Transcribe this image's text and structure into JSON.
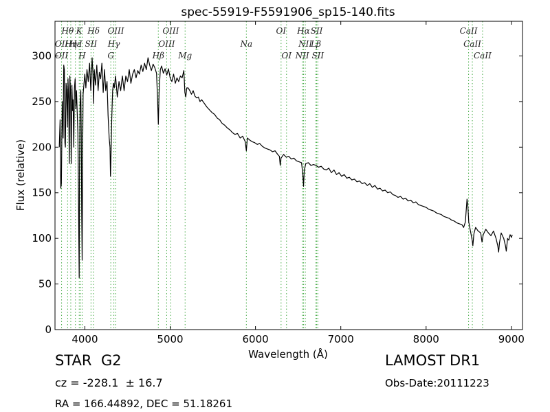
{
  "chart_data": {
    "type": "line",
    "title": "spec-55919-F5591906_sp15-140.fits",
    "xlabel": "Wavelength (Å)",
    "ylabel": "Flux (relative)",
    "xlim": [
      3650,
      9130
    ],
    "ylim": [
      0,
      338
    ],
    "xticks": [
      4000,
      5000,
      6000,
      7000,
      8000,
      9000
    ],
    "yticks": [
      0,
      50,
      100,
      150,
      200,
      250,
      300
    ],
    "grid": false,
    "line_color": "#000000",
    "series": [
      {
        "values": [
          [
            3700,
            200
          ],
          [
            3710,
            230
          ],
          [
            3718,
            155
          ],
          [
            3725,
            160
          ],
          [
            3735,
            250
          ],
          [
            3745,
            210
          ],
          [
            3752,
            290
          ],
          [
            3760,
            285
          ],
          [
            3766,
            205
          ],
          [
            3772,
            200
          ],
          [
            3780,
            270
          ],
          [
            3787,
            262
          ],
          [
            3795,
            222
          ],
          [
            3802,
            275
          ],
          [
            3810,
            252
          ],
          [
            3818,
            182
          ],
          [
            3824,
            278
          ],
          [
            3832,
            262
          ],
          [
            3840,
            182
          ],
          [
            3848,
            268
          ],
          [
            3856,
            240
          ],
          [
            3862,
            252
          ],
          [
            3870,
            200
          ],
          [
            3878,
            265
          ],
          [
            3886,
            275
          ],
          [
            3894,
            242
          ],
          [
            3902,
            262
          ],
          [
            3910,
            238
          ],
          [
            3918,
            215
          ],
          [
            3925,
            150
          ],
          [
            3930,
            95
          ],
          [
            3934,
            57
          ],
          [
            3938,
            180
          ],
          [
            3944,
            248
          ],
          [
            3952,
            262
          ],
          [
            3958,
            215
          ],
          [
            3963,
            130
          ],
          [
            3968,
            76
          ],
          [
            3973,
            185
          ],
          [
            3980,
            258
          ],
          [
            3990,
            270
          ],
          [
            4000,
            280
          ],
          [
            4012,
            265
          ],
          [
            4025,
            285
          ],
          [
            4040,
            272
          ],
          [
            4055,
            292
          ],
          [
            4070,
            262
          ],
          [
            4085,
            298
          ],
          [
            4095,
            280
          ],
          [
            4102,
            248
          ],
          [
            4110,
            285
          ],
          [
            4125,
            268
          ],
          [
            4140,
            290
          ],
          [
            4155,
            262
          ],
          [
            4170,
            282
          ],
          [
            4185,
            275
          ],
          [
            4200,
            292
          ],
          [
            4215,
            260
          ],
          [
            4230,
            285
          ],
          [
            4245,
            262
          ],
          [
            4260,
            272
          ],
          [
            4272,
            235
          ],
          [
            4285,
            210
          ],
          [
            4295,
            200
          ],
          [
            4300,
            168
          ],
          [
            4305,
            185
          ],
          [
            4315,
            230
          ],
          [
            4325,
            262
          ],
          [
            4335,
            270
          ],
          [
            4345,
            265
          ],
          [
            4360,
            278
          ],
          [
            4380,
            255
          ],
          [
            4400,
            272
          ],
          [
            4420,
            262
          ],
          [
            4440,
            278
          ],
          [
            4460,
            262
          ],
          [
            4480,
            278
          ],
          [
            4500,
            272
          ],
          [
            4520,
            285
          ],
          [
            4540,
            270
          ],
          [
            4560,
            280
          ],
          [
            4580,
            285
          ],
          [
            4600,
            276
          ],
          [
            4620,
            284
          ],
          [
            4640,
            280
          ],
          [
            4660,
            290
          ],
          [
            4680,
            283
          ],
          [
            4700,
            292
          ],
          [
            4720,
            285
          ],
          [
            4740,
            298
          ],
          [
            4760,
            290
          ],
          [
            4780,
            284
          ],
          [
            4800,
            291
          ],
          [
            4820,
            287
          ],
          [
            4840,
            281
          ],
          [
            4852,
            252
          ],
          [
            4861,
            225
          ],
          [
            4870,
            260
          ],
          [
            4885,
            285
          ],
          [
            4900,
            289
          ],
          [
            4920,
            281
          ],
          [
            4940,
            286
          ],
          [
            4960,
            279
          ],
          [
            4980,
            286
          ],
          [
            5000,
            276
          ],
          [
            5020,
            272
          ],
          [
            5040,
            280
          ],
          [
            5060,
            270
          ],
          [
            5080,
            276
          ],
          [
            5100,
            272
          ],
          [
            5120,
            278
          ],
          [
            5140,
            276
          ],
          [
            5160,
            284
          ],
          [
            5172,
            260
          ],
          [
            5183,
            255
          ],
          [
            5195,
            265
          ],
          [
            5210,
            265
          ],
          [
            5230,
            262
          ],
          [
            5250,
            258
          ],
          [
            5270,
            262
          ],
          [
            5290,
            256
          ],
          [
            5310,
            254
          ],
          [
            5330,
            255
          ],
          [
            5350,
            250
          ],
          [
            5370,
            252
          ],
          [
            5400,
            248
          ],
          [
            5430,
            244
          ],
          [
            5460,
            241
          ],
          [
            5490,
            238
          ],
          [
            5520,
            236
          ],
          [
            5550,
            232
          ],
          [
            5580,
            230
          ],
          [
            5610,
            226
          ],
          [
            5640,
            224
          ],
          [
            5670,
            221
          ],
          [
            5700,
            219
          ],
          [
            5730,
            216
          ],
          [
            5760,
            214
          ],
          [
            5790,
            215
          ],
          [
            5820,
            210
          ],
          [
            5850,
            212
          ],
          [
            5880,
            206
          ],
          [
            5893,
            196
          ],
          [
            5905,
            210
          ],
          [
            5930,
            208
          ],
          [
            5960,
            206
          ],
          [
            5990,
            205
          ],
          [
            6020,
            203
          ],
          [
            6050,
            204
          ],
          [
            6080,
            201
          ],
          [
            6110,
            199
          ],
          [
            6140,
            198
          ],
          [
            6170,
            197
          ],
          [
            6200,
            195
          ],
          [
            6230,
            196
          ],
          [
            6260,
            192
          ],
          [
            6280,
            190
          ],
          [
            6290,
            180
          ],
          [
            6300,
            188
          ],
          [
            6330,
            192
          ],
          [
            6360,
            189
          ],
          [
            6390,
            190
          ],
          [
            6420,
            187
          ],
          [
            6450,
            188
          ],
          [
            6480,
            185
          ],
          [
            6510,
            184
          ],
          [
            6540,
            183
          ],
          [
            6555,
            170
          ],
          [
            6563,
            157
          ],
          [
            6572,
            175
          ],
          [
            6590,
            182
          ],
          [
            6620,
            183
          ],
          [
            6650,
            180
          ],
          [
            6680,
            181
          ],
          [
            6710,
            180
          ],
          [
            6740,
            178
          ],
          [
            6770,
            179
          ],
          [
            6800,
            176
          ],
          [
            6830,
            175
          ],
          [
            6860,
            177
          ],
          [
            6890,
            172
          ],
          [
            6920,
            175
          ],
          [
            6950,
            170
          ],
          [
            6980,
            172
          ],
          [
            7010,
            168
          ],
          [
            7040,
            170
          ],
          [
            7070,
            166
          ],
          [
            7100,
            167
          ],
          [
            7130,
            164
          ],
          [
            7160,
            165
          ],
          [
            7190,
            162
          ],
          [
            7220,
            163
          ],
          [
            7250,
            160
          ],
          [
            7280,
            161
          ],
          [
            7310,
            158
          ],
          [
            7340,
            160
          ],
          [
            7370,
            156
          ],
          [
            7400,
            158
          ],
          [
            7430,
            154
          ],
          [
            7460,
            155
          ],
          [
            7490,
            152
          ],
          [
            7520,
            153
          ],
          [
            7550,
            150
          ],
          [
            7580,
            151
          ],
          [
            7610,
            148
          ],
          [
            7640,
            147
          ],
          [
            7670,
            145
          ],
          [
            7700,
            146
          ],
          [
            7730,
            143
          ],
          [
            7760,
            144
          ],
          [
            7790,
            141
          ],
          [
            7820,
            142
          ],
          [
            7850,
            139
          ],
          [
            7880,
            140
          ],
          [
            7910,
            137
          ],
          [
            7940,
            136
          ],
          [
            7970,
            135
          ],
          [
            8000,
            134
          ],
          [
            8030,
            132
          ],
          [
            8060,
            131
          ],
          [
            8090,
            130
          ],
          [
            8120,
            128
          ],
          [
            8150,
            127
          ],
          [
            8180,
            126
          ],
          [
            8210,
            124
          ],
          [
            8240,
            123
          ],
          [
            8270,
            122
          ],
          [
            8300,
            120
          ],
          [
            8330,
            119
          ],
          [
            8360,
            117
          ],
          [
            8390,
            116
          ],
          [
            8420,
            115
          ],
          [
            8440,
            112
          ],
          [
            8460,
            118
          ],
          [
            8480,
            143
          ],
          [
            8490,
            135
          ],
          [
            8500,
            118
          ],
          [
            8520,
            108
          ],
          [
            8540,
            98
          ],
          [
            8548,
            92
          ],
          [
            8560,
            105
          ],
          [
            8580,
            112
          ],
          [
            8610,
            108
          ],
          [
            8640,
            106
          ],
          [
            8655,
            96
          ],
          [
            8670,
            104
          ],
          [
            8700,
            110
          ],
          [
            8730,
            106
          ],
          [
            8760,
            103
          ],
          [
            8790,
            108
          ],
          [
            8820,
            100
          ],
          [
            8840,
            92
          ],
          [
            8850,
            85
          ],
          [
            8860,
            95
          ],
          [
            8880,
            106
          ],
          [
            8910,
            100
          ],
          [
            8930,
            92
          ],
          [
            8940,
            86
          ],
          [
            8955,
            100
          ],
          [
            8970,
            98
          ],
          [
            8985,
            104
          ],
          [
            9000,
            101
          ],
          [
            9010,
            104
          ]
        ]
      }
    ],
    "line_markers": [
      {
        "label": "Hθ",
        "x": 3798,
        "level": 0
      },
      {
        "label": "OII",
        "x": 3727,
        "level": 1
      },
      {
        "label": "OII",
        "x": 3727,
        "level": 2
      },
      {
        "label": "Hη",
        "x": 3835,
        "level": 1
      },
      {
        "label": "Hε",
        "x": 3889,
        "level": 1
      },
      {
        "label": "K",
        "x": 3934,
        "level": 0
      },
      {
        "label": "I",
        "x": 3950,
        "level": 1
      },
      {
        "label": "H",
        "x": 3968,
        "level": 2
      },
      {
        "label": "Hδ",
        "x": 4102,
        "level": 0
      },
      {
        "label": "SII",
        "x": 4072,
        "level": 1
      },
      {
        "label": "OIII",
        "x": 4363,
        "level": 0
      },
      {
        "label": "Hγ",
        "x": 4340,
        "level": 1
      },
      {
        "label": "G",
        "x": 4304,
        "level": 2
      },
      {
        "label": "OIII",
        "x": 5007,
        "level": 0
      },
      {
        "label": "OIII",
        "x": 4959,
        "level": 1
      },
      {
        "label": "Hβ",
        "x": 4861,
        "level": 2
      },
      {
        "label": "Mg",
        "x": 5175,
        "level": 2
      },
      {
        "label": "Na",
        "x": 5893,
        "level": 1
      },
      {
        "label": "OI",
        "x": 6300,
        "level": 0
      },
      {
        "label": "OI",
        "x": 6364,
        "level": 2
      },
      {
        "label": "Hα",
        "x": 6563,
        "level": 0
      },
      {
        "label": "NII",
        "x": 6584,
        "level": 1
      },
      {
        "label": "NII",
        "x": 6548,
        "level": 2
      },
      {
        "label": "SII",
        "x": 6717,
        "level": 0
      },
      {
        "label": "Lβ",
        "x": 6708,
        "level": 1
      },
      {
        "label": "SII",
        "x": 6731,
        "level": 2
      },
      {
        "label": "CaII",
        "x": 8498,
        "level": 0
      },
      {
        "label": "CaII",
        "x": 8542,
        "level": 1
      },
      {
        "label": "CaII",
        "x": 8662,
        "level": 2
      }
    ],
    "marker_color": "#44aa44"
  },
  "info": {
    "class_label": "STAR",
    "subclass_label": "G2",
    "cz_text": "cz = -228.1  ± 16.7",
    "coords_text": "RA = 166.44892, DEC = 51.18261",
    "survey_label": "LAMOST DR1",
    "obs_date_text": "Obs-Date:20111223"
  }
}
